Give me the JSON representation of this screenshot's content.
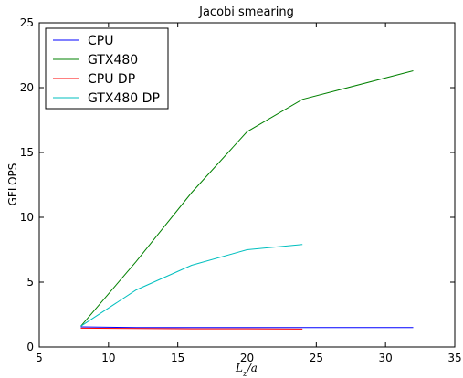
{
  "chart_data": {
    "type": "line",
    "title": "Jacobi smearing",
    "xlabel": "L_z/a",
    "xlabel_main": "L",
    "xlabel_sub": "z",
    "xlabel_tail": "/a",
    "ylabel": "GFLOPS",
    "xlim": [
      5,
      35
    ],
    "ylim": [
      0,
      25
    ],
    "xticks": [
      5,
      10,
      15,
      20,
      25,
      30,
      35
    ],
    "yticks": [
      0,
      5,
      10,
      15,
      20,
      25
    ],
    "grid": false,
    "legend_position": "top-left",
    "series": [
      {
        "name": "CPU",
        "color": "#0000ff",
        "x": [
          8,
          12,
          16,
          20,
          24,
          28,
          32
        ],
        "y": [
          1.55,
          1.5,
          1.5,
          1.5,
          1.5,
          1.5,
          1.5
        ]
      },
      {
        "name": "GTX480",
        "color": "#008000",
        "x": [
          8,
          12,
          16,
          20,
          24,
          32
        ],
        "y": [
          1.6,
          6.6,
          11.9,
          16.6,
          19.1,
          21.3
        ]
      },
      {
        "name": "CPU DP",
        "color": "#ff0000",
        "x": [
          8,
          12,
          16,
          20,
          24
        ],
        "y": [
          1.45,
          1.42,
          1.4,
          1.4,
          1.38
        ]
      },
      {
        "name": "GTX480 DP",
        "color": "#00bfbf",
        "x": [
          8,
          12,
          16,
          20,
          24
        ],
        "y": [
          1.6,
          4.4,
          6.3,
          7.5,
          7.9
        ]
      }
    ]
  }
}
